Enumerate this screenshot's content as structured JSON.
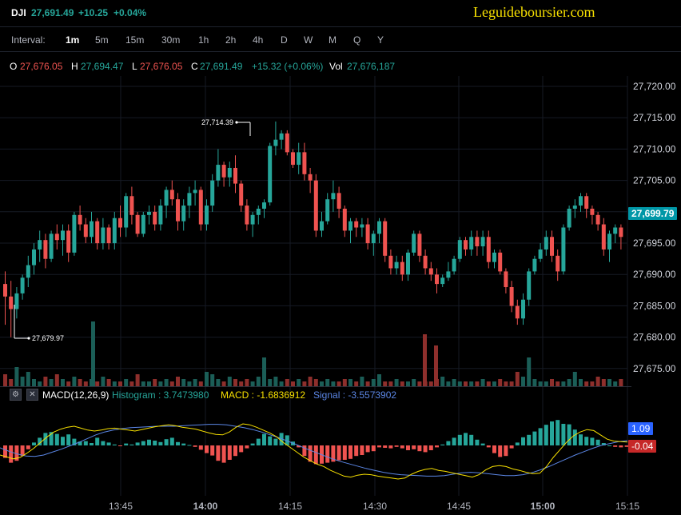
{
  "header": {
    "symbol": "DJI",
    "last": "27,691.49",
    "change": "+10.25",
    "change_pct": "+0.04%",
    "brand": "Leguideboursier.com"
  },
  "toolbar": {
    "interval_label": "Interval:",
    "intervals": [
      "1m",
      "5m",
      "15m",
      "30m",
      "1h",
      "2h",
      "4h",
      "D",
      "W",
      "M",
      "Q",
      "Y"
    ],
    "active_interval": "1m"
  },
  "ohlc": {
    "o_label": "O",
    "o": "27,676.05",
    "h_label": "H",
    "h": "27,694.47",
    "l_label": "L",
    "l": "27,676.05",
    "c_label": "C",
    "c": "27,691.49",
    "change": "+15.32 (+0.06%)",
    "vol_label": "Vol",
    "vol": "27,676,187"
  },
  "price_axis": {
    "ticks": [
      "27,720.00",
      "27,715.00",
      "27,710.00",
      "27,705.00",
      "27,700.00",
      "27,695.00",
      "27,690.00",
      "27,685.00",
      "27,680.00",
      "27,675.00"
    ],
    "last_tag": "27,699.79",
    "high_marker": "27,714.39",
    "low_marker": "27,679.97"
  },
  "macd": {
    "title": "MACD(12,26,9)",
    "histogram": "Histogram : 3.7473980",
    "macd": "MACD : -1.6836912",
    "signal": "Signal : -3.5573902",
    "tag_signal": "1.09",
    "tag_hist": "-0.04"
  },
  "time_axis": [
    "13:45",
    "14:00",
    "14:15",
    "14:30",
    "14:45",
    "15:00",
    "15:15"
  ],
  "colors": {
    "up": "#26a69a",
    "down": "#ef5350",
    "macd_line": "#f7e000",
    "signal_line": "#5b86e5",
    "hist_pos": "#26a69a",
    "hist_neg": "#ef5350",
    "last_tag_bg": "#0097a7"
  },
  "chart_data": {
    "type": "candlestick",
    "ylim": [
      27673,
      27722
    ],
    "candles": [
      {
        "o": 27688.5,
        "h": 27690.5,
        "l": 27682,
        "c": 27686.5
      },
      {
        "o": 27686.5,
        "h": 27689,
        "l": 27680,
        "c": 27684.5
      },
      {
        "o": 27684.5,
        "h": 27688,
        "l": 27683,
        "c": 27687
      },
      {
        "o": 27687,
        "h": 27690,
        "l": 27686,
        "c": 27689.5
      },
      {
        "o": 27689.5,
        "h": 27693,
        "l": 27688,
        "c": 27691.5
      },
      {
        "o": 27691.5,
        "h": 27695,
        "l": 27690,
        "c": 27694
      },
      {
        "o": 27694,
        "h": 27697,
        "l": 27692,
        "c": 27695.5
      },
      {
        "o": 27695.5,
        "h": 27696.5,
        "l": 27691,
        "c": 27692.5
      },
      {
        "o": 27692.5,
        "h": 27697,
        "l": 27692,
        "c": 27696.5
      },
      {
        "o": 27696.5,
        "h": 27698,
        "l": 27694,
        "c": 27695.5
      },
      {
        "o": 27695.5,
        "h": 27698,
        "l": 27693,
        "c": 27697
      },
      {
        "o": 27697,
        "h": 27698,
        "l": 27692,
        "c": 27693.5
      },
      {
        "o": 27693.5,
        "h": 27700,
        "l": 27693,
        "c": 27699.5
      },
      {
        "o": 27699.5,
        "h": 27701,
        "l": 27697,
        "c": 27698
      },
      {
        "o": 27698,
        "h": 27699,
        "l": 27695,
        "c": 27696
      },
      {
        "o": 27696,
        "h": 27700,
        "l": 27695,
        "c": 27698.5
      },
      {
        "o": 27698.5,
        "h": 27699,
        "l": 27694,
        "c": 27695
      },
      {
        "o": 27695,
        "h": 27699,
        "l": 27694,
        "c": 27697.5
      },
      {
        "o": 27697.5,
        "h": 27698,
        "l": 27694,
        "c": 27695
      },
      {
        "o": 27695,
        "h": 27700,
        "l": 27694,
        "c": 27699
      },
      {
        "o": 27699,
        "h": 27701,
        "l": 27696,
        "c": 27697.5
      },
      {
        "o": 27697.5,
        "h": 27703,
        "l": 27696,
        "c": 27702.5
      },
      {
        "o": 27702.5,
        "h": 27704,
        "l": 27698,
        "c": 27699.5
      },
      {
        "o": 27699.5,
        "h": 27700,
        "l": 27696,
        "c": 27696.5
      },
      {
        "o": 27696.5,
        "h": 27700,
        "l": 27696,
        "c": 27699.5
      },
      {
        "o": 27699.5,
        "h": 27701,
        "l": 27698,
        "c": 27700
      },
      {
        "o": 27700,
        "h": 27701,
        "l": 27697,
        "c": 27698
      },
      {
        "o": 27698,
        "h": 27702,
        "l": 27697,
        "c": 27701
      },
      {
        "o": 27701,
        "h": 27704,
        "l": 27699,
        "c": 27703.5
      },
      {
        "o": 27703.5,
        "h": 27705,
        "l": 27701,
        "c": 27702
      },
      {
        "o": 27702,
        "h": 27703,
        "l": 27697,
        "c": 27698.5
      },
      {
        "o": 27698.5,
        "h": 27702,
        "l": 27697,
        "c": 27701
      },
      {
        "o": 27701,
        "h": 27704,
        "l": 27699,
        "c": 27703
      },
      {
        "o": 27703,
        "h": 27705,
        "l": 27701,
        "c": 27703.5
      },
      {
        "o": 27703.5,
        "h": 27704,
        "l": 27697,
        "c": 27698
      },
      {
        "o": 27698,
        "h": 27702,
        "l": 27697,
        "c": 27701
      },
      {
        "o": 27701,
        "h": 27706,
        "l": 27700,
        "c": 27705
      },
      {
        "o": 27705,
        "h": 27710,
        "l": 27704,
        "c": 27707.5
      },
      {
        "o": 27707.5,
        "h": 27708,
        "l": 27704,
        "c": 27705.5
      },
      {
        "o": 27705.5,
        "h": 27708,
        "l": 27704,
        "c": 27707
      },
      {
        "o": 27707,
        "h": 27709,
        "l": 27703,
        "c": 27704.5
      },
      {
        "o": 27704.5,
        "h": 27705,
        "l": 27700,
        "c": 27701
      },
      {
        "o": 27701,
        "h": 27702,
        "l": 27697,
        "c": 27698
      },
      {
        "o": 27698,
        "h": 27700,
        "l": 27696,
        "c": 27699.5
      },
      {
        "o": 27699.5,
        "h": 27701,
        "l": 27698,
        "c": 27700.5
      },
      {
        "o": 27700.5,
        "h": 27702,
        "l": 27699,
        "c": 27701.5
      },
      {
        "o": 27701.5,
        "h": 27711,
        "l": 27701,
        "c": 27710.5
      },
      {
        "o": 27710.5,
        "h": 27714.4,
        "l": 27709,
        "c": 27711.5
      },
      {
        "o": 27711.5,
        "h": 27713,
        "l": 27710,
        "c": 27712.5
      },
      {
        "o": 27712.5,
        "h": 27713,
        "l": 27709,
        "c": 27709.5
      },
      {
        "o": 27709.5,
        "h": 27710,
        "l": 27707,
        "c": 27707.5
      },
      {
        "o": 27707.5,
        "h": 27711,
        "l": 27706,
        "c": 27709.5
      },
      {
        "o": 27709.5,
        "h": 27711,
        "l": 27705,
        "c": 27706
      },
      {
        "o": 27706,
        "h": 27707,
        "l": 27703,
        "c": 27705
      },
      {
        "o": 27705,
        "h": 27706,
        "l": 27696,
        "c": 27697
      },
      {
        "o": 27697,
        "h": 27700,
        "l": 27696,
        "c": 27698.5
      },
      {
        "o": 27698.5,
        "h": 27703,
        "l": 27698,
        "c": 27702
      },
      {
        "o": 27702,
        "h": 27705,
        "l": 27700,
        "c": 27703
      },
      {
        "o": 27703,
        "h": 27704,
        "l": 27699,
        "c": 27700.5
      },
      {
        "o": 27700.5,
        "h": 27701,
        "l": 27696,
        "c": 27697
      },
      {
        "o": 27697,
        "h": 27699,
        "l": 27695,
        "c": 27698.5
      },
      {
        "o": 27698.5,
        "h": 27699,
        "l": 27696,
        "c": 27697.5
      },
      {
        "o": 27697.5,
        "h": 27699,
        "l": 27696,
        "c": 27698
      },
      {
        "o": 27698,
        "h": 27699,
        "l": 27694,
        "c": 27695
      },
      {
        "o": 27695,
        "h": 27697,
        "l": 27693,
        "c": 27696.5
      },
      {
        "o": 27696.5,
        "h": 27699,
        "l": 27695,
        "c": 27698.5
      },
      {
        "o": 27698.5,
        "h": 27699,
        "l": 27692,
        "c": 27693
      },
      {
        "o": 27693,
        "h": 27694,
        "l": 27690,
        "c": 27691
      },
      {
        "o": 27691,
        "h": 27693,
        "l": 27690,
        "c": 27692
      },
      {
        "o": 27692,
        "h": 27693,
        "l": 27689,
        "c": 27690
      },
      {
        "o": 27690,
        "h": 27694,
        "l": 27689,
        "c": 27693.5
      },
      {
        "o": 27693.5,
        "h": 27697,
        "l": 27693,
        "c": 27696.5
      },
      {
        "o": 27696.5,
        "h": 27697,
        "l": 27692,
        "c": 27693
      },
      {
        "o": 27693,
        "h": 27694,
        "l": 27690,
        "c": 27691
      },
      {
        "o": 27691,
        "h": 27692,
        "l": 27689,
        "c": 27690
      },
      {
        "o": 27690,
        "h": 27691,
        "l": 27687,
        "c": 27688.5
      },
      {
        "o": 27688.5,
        "h": 27690,
        "l": 27688,
        "c": 27689.5
      },
      {
        "o": 27689.5,
        "h": 27692,
        "l": 27689,
        "c": 27690.5
      },
      {
        "o": 27690.5,
        "h": 27693,
        "l": 27690,
        "c": 27692.5
      },
      {
        "o": 27692.5,
        "h": 27696,
        "l": 27692,
        "c": 27695.5
      },
      {
        "o": 27695.5,
        "h": 27696,
        "l": 27693,
        "c": 27694
      },
      {
        "o": 27694,
        "h": 27697,
        "l": 27693,
        "c": 27696
      },
      {
        "o": 27696,
        "h": 27697,
        "l": 27693,
        "c": 27694.5
      },
      {
        "o": 27694.5,
        "h": 27697,
        "l": 27693,
        "c": 27696
      },
      {
        "o": 27696,
        "h": 27697,
        "l": 27691,
        "c": 27692
      },
      {
        "o": 27692,
        "h": 27694,
        "l": 27691,
        "c": 27693.5
      },
      {
        "o": 27693.5,
        "h": 27694,
        "l": 27690,
        "c": 27690.5
      },
      {
        "o": 27690.5,
        "h": 27691,
        "l": 27687,
        "c": 27688
      },
      {
        "o": 27688,
        "h": 27689,
        "l": 27684,
        "c": 27685
      },
      {
        "o": 27685,
        "h": 27686,
        "l": 27682,
        "c": 27683
      },
      {
        "o": 27683,
        "h": 27687,
        "l": 27682,
        "c": 27686
      },
      {
        "o": 27686,
        "h": 27691,
        "l": 27685,
        "c": 27690.5
      },
      {
        "o": 27690.5,
        "h": 27693,
        "l": 27690,
        "c": 27692.5
      },
      {
        "o": 27692.5,
        "h": 27695,
        "l": 27692,
        "c": 27694
      },
      {
        "o": 27694,
        "h": 27697,
        "l": 27693,
        "c": 27696
      },
      {
        "o": 27696,
        "h": 27697,
        "l": 27692,
        "c": 27693
      },
      {
        "o": 27693,
        "h": 27694,
        "l": 27689,
        "c": 27690.5
      },
      {
        "o": 27690.5,
        "h": 27698,
        "l": 27690,
        "c": 27697.5
      },
      {
        "o": 27697.5,
        "h": 27701,
        "l": 27697,
        "c": 27700.5
      },
      {
        "o": 27700.5,
        "h": 27702,
        "l": 27699,
        "c": 27701
      },
      {
        "o": 27701,
        "h": 27703,
        "l": 27700,
        "c": 27702.5
      },
      {
        "o": 27702.5,
        "h": 27703,
        "l": 27699,
        "c": 27700.5
      },
      {
        "o": 27700.5,
        "h": 27701,
        "l": 27698,
        "c": 27699.5
      },
      {
        "o": 27699.5,
        "h": 27700,
        "l": 27697,
        "c": 27698
      },
      {
        "o": 27698,
        "h": 27699,
        "l": 27693,
        "c": 27694
      },
      {
        "o": 27694,
        "h": 27697,
        "l": 27692,
        "c": 27696.5
      },
      {
        "o": 27696.5,
        "h": 27698,
        "l": 27695,
        "c": 27697.5
      },
      {
        "o": 27697.5,
        "h": 27698,
        "l": 27694,
        "c": 27696
      }
    ],
    "volume": [
      5,
      3,
      8,
      4,
      6,
      3,
      2,
      4,
      3,
      5,
      3,
      2,
      4,
      3,
      2,
      3,
      2,
      4,
      3,
      2,
      2,
      3,
      2,
      5,
      2,
      2,
      3,
      2,
      3,
      2,
      4,
      3,
      2,
      3,
      2,
      6,
      5,
      3,
      2,
      4,
      3,
      2,
      3,
      2,
      4,
      12,
      3,
      4,
      2,
      3,
      2,
      3,
      2,
      4,
      3,
      2,
      3,
      2,
      2,
      3,
      3,
      2,
      4,
      2,
      3,
      5,
      2,
      2,
      3,
      2,
      2,
      3,
      2,
      2,
      2,
      3,
      4,
      2,
      3,
      2,
      2,
      2,
      2,
      3,
      2,
      2,
      3,
      2,
      2,
      6,
      4,
      12,
      3,
      2,
      2,
      3,
      2,
      2,
      3,
      6,
      3,
      2,
      2,
      4,
      3,
      3,
      2,
      3,
      2
    ],
    "volume_highlight": {
      "13:37": 22,
      "14:39": 20,
      "14:40": 14
    },
    "macd_histogram": [
      -2.6,
      -3.6,
      -3.2,
      -2.2,
      -0.8,
      0.6,
      1.6,
      2.6,
      2.8,
      2.4,
      1.8,
      2.3,
      1.4,
      0.8,
      0.9,
      0.5,
      1.6,
      0.9,
      0.6,
      0.2,
      -0.1,
      0.4,
      0.2,
      0.6,
      0.9,
      1.2,
      1.0,
      0.7,
      1.3,
      1.6,
      0.7,
      0.4,
      0.1,
      -0.3,
      -0.9,
      -1.6,
      -2.1,
      -3.2,
      -3.6,
      -3.0,
      -2.2,
      -1.4,
      -0.6,
      0.4,
      1.4,
      2.4,
      1.9,
      1.4,
      2.6,
      2.1,
      0.8,
      -0.4,
      -2.2,
      -3.4,
      -3.9,
      -3.8,
      -3.6,
      -3.4,
      -3.1,
      -3.0,
      -2.8,
      -2.2,
      -2.0,
      -1.4,
      -1.2,
      -0.4,
      -0.5,
      -0.6,
      -0.3,
      -0.6,
      -1.0,
      -0.8,
      -1.2,
      -1.4,
      -1.0,
      -0.4,
      0.2,
      0.9,
      1.6,
      2.2,
      2.6,
      2.2,
      1.2,
      0.4,
      -0.4,
      -1.6,
      -2.4,
      -2.2,
      -0.6,
      0.6,
      1.7,
      2.2,
      2.9,
      3.6,
      4.3,
      5.0,
      5.3,
      4.5,
      4.4,
      3.3,
      2.3,
      1.8,
      1.6,
      1.2,
      0.5,
      0.0,
      -0.3,
      -0.4,
      -0.3
    ],
    "macd_line": [
      -2.0,
      -2.4,
      -2.8,
      -2.5,
      -1.6,
      -0.6,
      0.6,
      1.8,
      2.8,
      3.4,
      3.8,
      4.0,
      3.6,
      3.2,
      3.0,
      3.2,
      3.5,
      3.6,
      3.4,
      3.2,
      3.0,
      3.3,
      3.6,
      3.9,
      4.1,
      4.3,
      4.1,
      3.8,
      3.6,
      3.4,
      3.0,
      2.6,
      2.3,
      2.2,
      2.8,
      3.8,
      4.5,
      4.3,
      3.8,
      3.2,
      2.6,
      1.8,
      0.6,
      -0.4,
      -1.4,
      -2.4,
      -3.2,
      -3.9,
      -4.4,
      -5.2,
      -5.8,
      -6.4,
      -6.6,
      -6.2,
      -6.0,
      -6.1,
      -6.4,
      -6.6,
      -6.8,
      -7.0,
      -6.8,
      -6.0,
      -5.4,
      -5.0,
      -4.8,
      -5.2,
      -5.4,
      -5.7,
      -6.0,
      -6.3,
      -6.6,
      -6.1,
      -5.1,
      -4.4,
      -4.2,
      -4.4,
      -4.9,
      -5.2,
      -5.6,
      -5.9,
      -5.8,
      -4.4,
      -2.5,
      -0.9,
      0.7,
      2.0,
      2.8,
      3.3,
      3.1,
      2.2,
      1.3,
      0.9,
      0.8,
      0.7
    ],
    "signal_line": [
      -0.5,
      -1.2,
      -1.8,
      -2.2,
      -2.3,
      -2.0,
      -1.4,
      -0.8,
      -0.1,
      0.6,
      1.4,
      2.2,
      2.8,
      3.2,
      3.5,
      3.7,
      3.8,
      3.9,
      4.0,
      4.0,
      4.0,
      4.1,
      4.2,
      4.3,
      4.4,
      4.4,
      4.3,
      4.0,
      3.7,
      3.3,
      2.8,
      2.2,
      1.6,
      0.9,
      0.2,
      -0.6,
      -1.3,
      -2.0,
      -2.7,
      -3.3,
      -3.8,
      -4.3,
      -4.8,
      -5.2,
      -5.6,
      -5.9,
      -6.1,
      -6.2,
      -6.3,
      -6.4,
      -6.4,
      -6.3,
      -6.0,
      -5.7,
      -5.6,
      -5.7,
      -5.9,
      -6.1,
      -6.3,
      -6.3,
      -6.1,
      -5.7,
      -5.1,
      -4.4,
      -3.6,
      -2.8,
      -2.0,
      -1.3,
      -0.6,
      0.0,
      0.4,
      0.8,
      1.0
    ]
  }
}
